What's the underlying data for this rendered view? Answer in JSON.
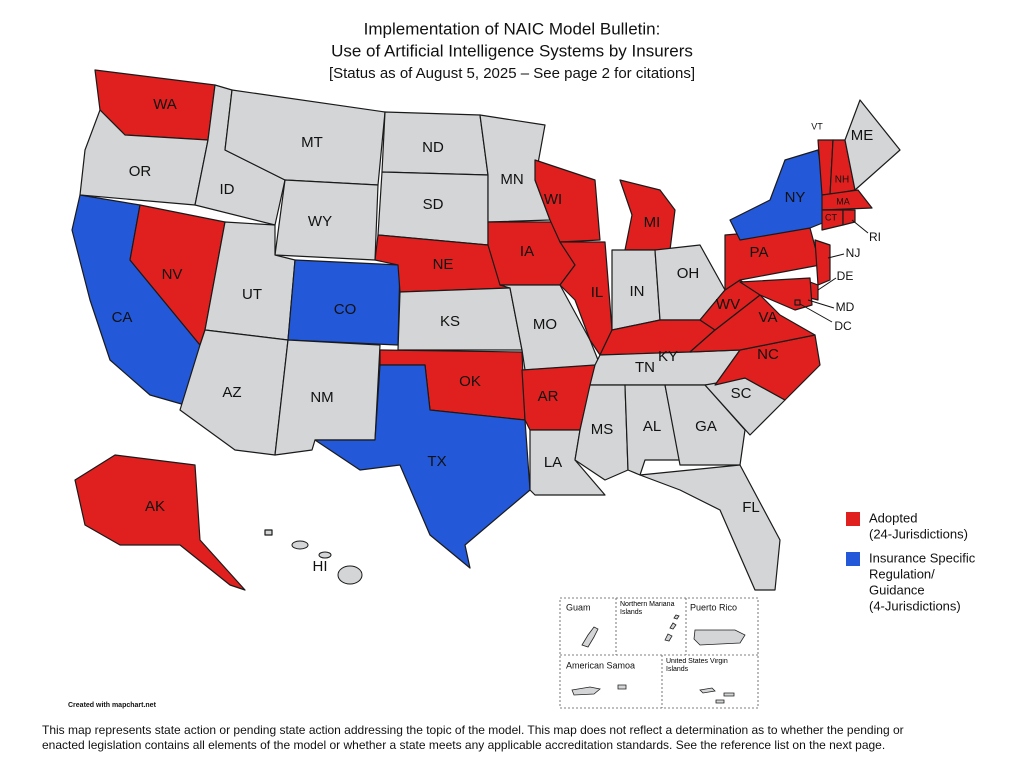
{
  "title_lines": [
    "Implementation of NAIC Model Bulletin:",
    "Use of Artificial Intelligence Systems by Insurers",
    "[Status as of August 5, 2025 – See page 2 for citations]"
  ],
  "colors": {
    "statuses": [
      "#e0201f",
      "#2358d8"
    ],
    "none": "#d3d5d6",
    "border": "#1a1a1a"
  },
  "legend": [
    {
      "lines": [
        "Adopted",
        "(24-Jurisdictions)"
      ]
    },
    {
      "lines": [
        "Insurance Specific",
        "Regulation/",
        "Guidance",
        "(4-Jurisdictions)"
      ]
    }
  ],
  "states": [
    {
      "label": "WA",
      "status": 0
    },
    {
      "label": "OR",
      "status": null
    },
    {
      "label": "CA",
      "status": 1
    },
    {
      "label": "NV",
      "status": 0
    },
    {
      "label": "ID",
      "status": null
    },
    {
      "label": "MT",
      "status": null
    },
    {
      "label": "WY",
      "status": null
    },
    {
      "label": "UT",
      "status": null
    },
    {
      "label": "CO",
      "status": 1
    },
    {
      "label": "AZ",
      "status": null
    },
    {
      "label": "NM",
      "status": null
    },
    {
      "label": "ND",
      "status": null
    },
    {
      "label": "SD",
      "status": null
    },
    {
      "label": "NE",
      "status": 0
    },
    {
      "label": "KS",
      "status": null
    },
    {
      "label": "OK",
      "status": 0
    },
    {
      "label": "TX",
      "status": 1
    },
    {
      "label": "MN",
      "status": null
    },
    {
      "label": "IA",
      "status": 0
    },
    {
      "label": "MO",
      "status": null
    },
    {
      "label": "AR",
      "status": 0
    },
    {
      "label": "LA",
      "status": null
    },
    {
      "label": "WI",
      "status": 0
    },
    {
      "label": "IL",
      "status": 0
    },
    {
      "label": "MI",
      "status": 0
    },
    {
      "label": "IN",
      "status": null
    },
    {
      "label": "OH",
      "status": null
    },
    {
      "label": "KY",
      "status": 0
    },
    {
      "label": "TN",
      "status": null
    },
    {
      "label": "MS",
      "status": null
    },
    {
      "label": "AL",
      "status": null
    },
    {
      "label": "GA",
      "status": null
    },
    {
      "label": "FL",
      "status": null
    },
    {
      "label": "SC",
      "status": null
    },
    {
      "label": "NC",
      "status": 0
    },
    {
      "label": "VA",
      "status": 0
    },
    {
      "label": "WV",
      "status": 0
    },
    {
      "label": "PA",
      "status": 0
    },
    {
      "label": "NY",
      "status": 1
    },
    {
      "label": "VT",
      "status": 0
    },
    {
      "label": "NH",
      "status": 0
    },
    {
      "label": "ME",
      "status": null
    },
    {
      "label": "MA",
      "status": 0
    },
    {
      "label": "CT",
      "status": 0
    },
    {
      "label": "RI",
      "status": 0
    },
    {
      "label": "NJ",
      "status": 0
    },
    {
      "label": "DE",
      "status": 0
    },
    {
      "label": "MD",
      "status": 0
    },
    {
      "label": "DC",
      "status": 0
    },
    {
      "label": "AK",
      "status": 0
    },
    {
      "label": "HI",
      "status": null
    }
  ],
  "territories": [
    "Guam",
    "Northern Mariana Islands",
    "Puerto Rico",
    "American Samoa",
    "United States Virgin Islands"
  ],
  "credit": "Created with mapchart.net",
  "footnote_lines": [
    "This map represents state action or pending state action addressing the topic of the model.  This map does not reflect a determination as to whether the pending or",
    "enacted legislation contains all elements of the model or whether a state meets any applicable accreditation standards. See the reference list on the next page."
  ]
}
